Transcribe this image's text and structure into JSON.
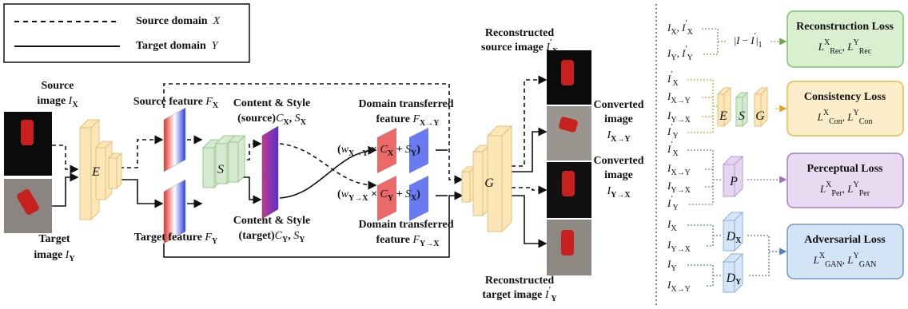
{
  "legend": [
    [
      "Source domain  ",
      {
        "m": "X"
      }
    ],
    [
      "Target domain  ",
      {
        "m": "Y"
      }
    ]
  ],
  "main": [
    [
      "Source"
    ],
    [
      "image ",
      {
        "m": "I"
      },
      {
        "sub": "X"
      }
    ],
    [
      "Target"
    ],
    [
      "image ",
      {
        "m": "I"
      },
      {
        "sub": "Y"
      }
    ],
    [
      "Source feature ",
      {
        "m": "F"
      },
      {
        "sub": "X"
      }
    ],
    [
      "Target feature ",
      {
        "m": "F"
      },
      {
        "sub": "Y"
      }
    ],
    [
      "Content & Style"
    ],
    [
      "(source)",
      {
        "m": "C"
      },
      {
        "sub": "X"
      },
      ", ",
      {
        "m": "S"
      },
      {
        "sub": "X"
      }
    ],
    [
      "Content & Style"
    ],
    [
      "(target)",
      {
        "m": "C"
      },
      {
        "sub": "Y"
      },
      ", ",
      {
        "m": "S"
      },
      {
        "sub": "Y"
      }
    ],
    [
      "Domain transferred"
    ],
    [
      "feature ",
      {
        "m": "F"
      },
      {
        "sub": "X→Y"
      }
    ],
    [
      "Domain transferred"
    ],
    [
      "feature ",
      {
        "m": "F"
      },
      {
        "sub": "Y→X"
      }
    ],
    [
      "(",
      {
        "m": "w"
      },
      {
        "sub": "X→Y"
      },
      " × ",
      {
        "m": "C"
      },
      {
        "sub": "X"
      },
      " + ",
      {
        "m": "S"
      },
      {
        "sub": "Y"
      },
      ")"
    ],
    [
      "(",
      {
        "m": "w"
      },
      {
        "sub": "Y→X"
      },
      " × ",
      {
        "m": "C"
      },
      {
        "sub": "Y"
      },
      " + ",
      {
        "m": "S"
      },
      {
        "sub": "X"
      },
      ")"
    ],
    [
      "Reconstructed"
    ],
    [
      "source image ",
      {
        "m": "I"
      },
      {
        "sup": "′"
      },
      {
        "sub": "X"
      }
    ],
    [
      "Converted"
    ],
    [
      "image"
    ],
    [
      {
        "m": "I"
      },
      {
        "sub": "X→Y"
      }
    ],
    [
      "Converted"
    ],
    [
      "image"
    ],
    [
      {
        "m": "I"
      },
      {
        "sub": "Y→X"
      }
    ],
    [
      "Reconstructed"
    ],
    [
      "target image ",
      {
        "m": "I"
      },
      {
        "sup": "′"
      },
      {
        "sub": "Y"
      }
    ],
    [
      {
        "m": "E"
      }
    ],
    [
      {
        "m": "S"
      }
    ],
    [
      {
        "m": "G"
      }
    ]
  ],
  "losses": [
    {
      "inputs": [
        [
          {
            "m": "I"
          },
          {
            "sub": "X"
          },
          ", ",
          {
            "m": "I"
          },
          {
            "sup": "′"
          },
          {
            "sub": "X"
          }
        ],
        [
          {
            "m": "I"
          },
          {
            "sub": "Y"
          },
          ", ",
          {
            "m": "I"
          },
          {
            "sup": "′"
          },
          {
            "sub": "Y"
          }
        ]
      ],
      "operator": [
        "|",
        {
          "m": "I"
        },
        " − ",
        {
          "m": "I"
        },
        {
          "sup": "′"
        },
        "|",
        {
          "sub": "1"
        }
      ],
      "title": [
        "Reconstruction Loss"
      ],
      "formula": [
        {
          "m": "L"
        },
        {
          "sup": "X"
        },
        {
          "sub": "Rec"
        },
        ", ",
        {
          "m": "L"
        },
        {
          "sup": "Y"
        },
        {
          "sub": "Rec"
        }
      ]
    },
    {
      "inputs": [
        [
          {
            "m": "I"
          },
          {
            "sup": "′"
          },
          {
            "sub": "X"
          }
        ],
        [
          {
            "m": "I"
          },
          {
            "sub": "X→Y"
          }
        ],
        [
          {
            "m": "I"
          },
          {
            "sub": "Y→X"
          }
        ],
        [
          {
            "m": "I"
          },
          {
            "sup": "′"
          },
          {
            "sub": "Y"
          }
        ]
      ],
      "networks": [
        [
          {
            "m": "E"
          }
        ],
        [
          {
            "m": "S"
          }
        ],
        [
          {
            "m": "G"
          }
        ]
      ],
      "title": [
        "Consistency Loss"
      ],
      "formula": [
        {
          "m": "L"
        },
        {
          "sup": "X"
        },
        {
          "sub": "Con"
        },
        ", ",
        {
          "m": "L"
        },
        {
          "sup": "Y"
        },
        {
          "sub": "Con"
        }
      ]
    },
    {
      "inputs": [
        [
          {
            "m": "I"
          },
          {
            "sup": "′"
          },
          {
            "sub": "X"
          }
        ],
        [
          {
            "m": "I"
          },
          {
            "sub": "X→Y"
          }
        ],
        [
          {
            "m": "I"
          },
          {
            "sub": "Y→X"
          }
        ],
        [
          {
            "m": "I"
          },
          {
            "sup": "′"
          },
          {
            "sub": "Y"
          }
        ]
      ],
      "networks": [
        [
          {
            "m": "P"
          }
        ]
      ],
      "title": [
        "Perceptual Loss"
      ],
      "formula": [
        {
          "m": "L"
        },
        {
          "sup": "X"
        },
        {
          "sub": "Per"
        },
        ", ",
        {
          "m": "L"
        },
        {
          "sup": "Y"
        },
        {
          "sub": "Per"
        }
      ]
    },
    {
      "inputs": [
        [
          {
            "m": "I"
          },
          {
            "sub": "X"
          }
        ],
        [
          {
            "m": "I"
          },
          {
            "sub": "Y→X"
          }
        ],
        [
          {
            "m": "I"
          },
          {
            "sub": "Y"
          }
        ],
        [
          {
            "m": "I"
          },
          {
            "sub": "X→Y"
          }
        ]
      ],
      "networks": [
        [
          {
            "m": "D"
          },
          {
            "sub": "X"
          }
        ],
        [
          {
            "m": "D"
          },
          {
            "sub": "Y"
          }
        ]
      ],
      "title": [
        "Adversarial Loss"
      ],
      "formula": [
        {
          "m": "L"
        },
        {
          "sup": "X"
        },
        {
          "sub": "GAN"
        },
        ", ",
        {
          "m": "L"
        },
        {
          "sup": "Y"
        },
        {
          "sub": "GAN"
        }
      ]
    }
  ]
}
